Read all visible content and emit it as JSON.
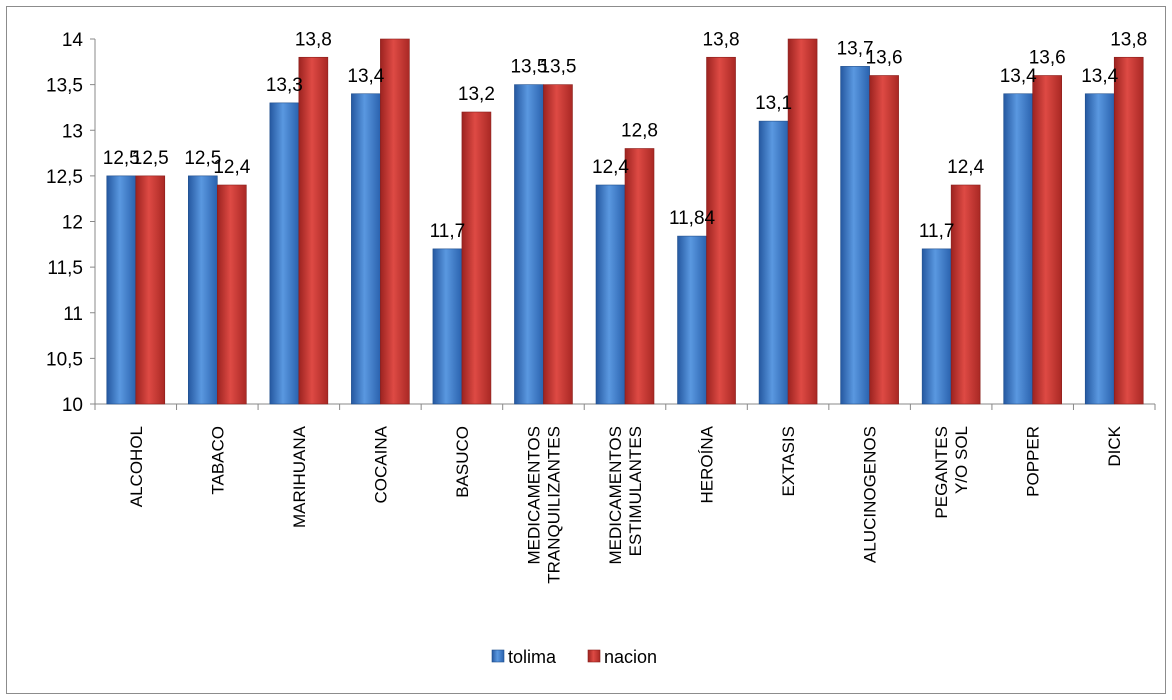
{
  "chart_data": {
    "type": "bar",
    "categories": [
      [
        "ALCOHOL"
      ],
      [
        "TABACO"
      ],
      [
        "MARIHUANA"
      ],
      [
        "COCAINA"
      ],
      [
        "BASUCO"
      ],
      [
        "MEDICAMENTOS",
        "TRANQUILIZANTES"
      ],
      [
        "MEDICAMENTOS",
        "ESTIMULANTES"
      ],
      [
        "HEROÍNA"
      ],
      [
        "EXTASIS"
      ],
      [
        "ALUCINOGENOS"
      ],
      [
        "PEGANTES",
        "Y/O SOL"
      ],
      [
        "POPPER"
      ],
      [
        "DICK"
      ]
    ],
    "series": [
      {
        "name": "tolima",
        "color": "#3A79C6",
        "values": [
          12.5,
          12.5,
          13.3,
          13.4,
          11.7,
          13.5,
          12.4,
          11.84,
          13.1,
          13.7,
          11.7,
          13.4,
          13.4
        ],
        "labels": [
          "12,5",
          "12,5",
          "13,3",
          "13,4",
          "11,7",
          "13,5",
          "12,4",
          "11,84",
          "13,1",
          "13,7",
          "11,7",
          "13,4",
          "13,4"
        ]
      },
      {
        "name": "nacion",
        "color": "#C9302C",
        "values": [
          12.5,
          12.4,
          13.8,
          14,
          13.2,
          13.5,
          12.8,
          13.8,
          14,
          13.6,
          12.4,
          13.6,
          13.8
        ],
        "labels": [
          "12,5",
          "12,4",
          "13,8",
          "",
          "13,2",
          "13,5",
          "12,8",
          "13,8",
          "",
          "13,6",
          "12,4",
          "13,6",
          "13,8"
        ]
      }
    ],
    "yticks": [
      "10",
      "10,5",
      "11",
      "11,5",
      "12",
      "12,5",
      "13",
      "13,5",
      "14"
    ],
    "ylim": [
      10,
      14
    ],
    "grid": false,
    "legend": "bottom",
    "title": "",
    "xlabel": "",
    "ylabel": ""
  }
}
